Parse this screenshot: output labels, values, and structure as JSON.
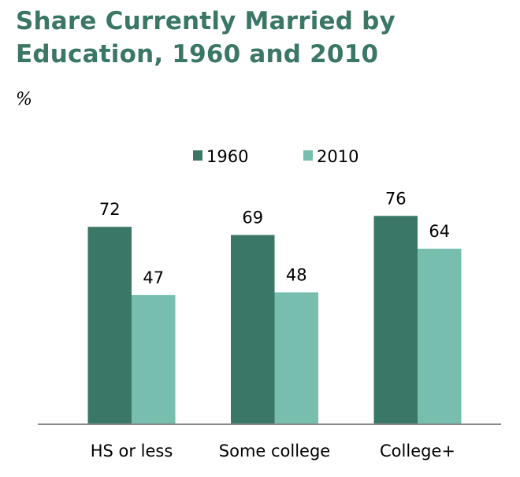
{
  "chart_data": {
    "type": "bar",
    "title": "Share Currently Married by Education, 1960 and 2010",
    "ylabel": "%",
    "categories": [
      "HS or less",
      "Some college",
      "College+"
    ],
    "series": [
      {
        "name": "1960",
        "values": [
          72,
          69,
          76
        ],
        "color": "#3a7766"
      },
      {
        "name": "2010",
        "values": [
          47,
          48,
          64
        ],
        "color": "#77beae"
      }
    ],
    "ylim": [
      0,
      100
    ],
    "grid": false,
    "legend": "top-center"
  }
}
